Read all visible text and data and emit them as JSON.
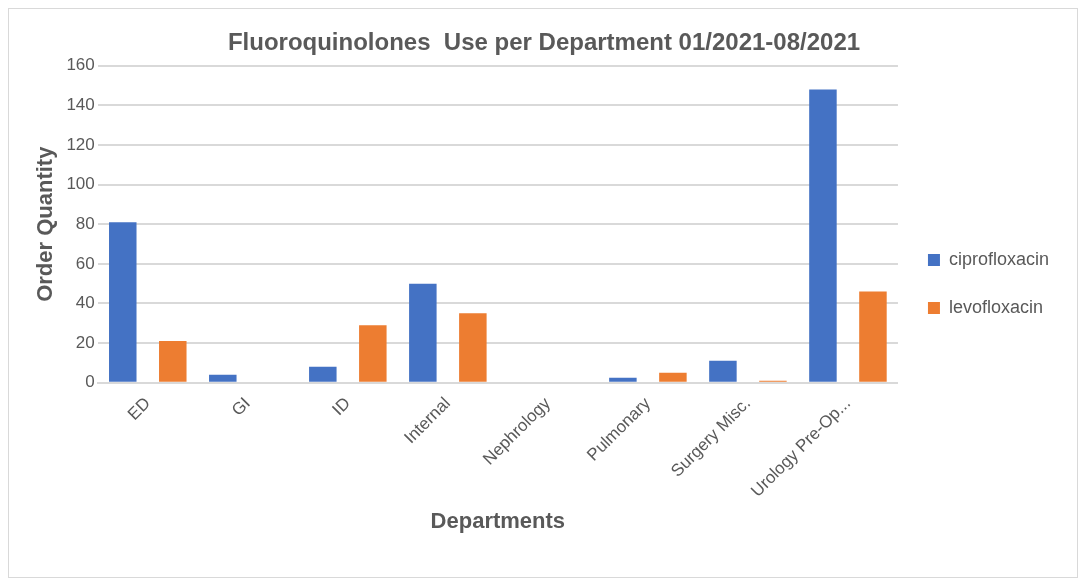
{
  "chart_data": {
    "type": "bar",
    "title": "Fluoroquinolones  Use per Department 01/2021-08/2021",
    "xlabel": "Departments",
    "ylabel": "Order Quantity",
    "categories": [
      "ED",
      "GI",
      "ID",
      "Internal",
      "Nephrology",
      "Pulmonary",
      "Surgery Misc.",
      "Urology Pre-Op..."
    ],
    "series": [
      {
        "name": "ciprofloxacin",
        "color": "#4472c4",
        "values": [
          81,
          4,
          8,
          50,
          0,
          2.5,
          11,
          148
        ]
      },
      {
        "name": "levofloxacin",
        "color": "#ed7d31",
        "values": [
          21,
          0,
          29,
          35,
          0,
          5,
          1,
          46
        ]
      }
    ],
    "ylim": [
      0,
      160
    ],
    "yticks": [
      0,
      20,
      40,
      60,
      80,
      100,
      120,
      140,
      160
    ],
    "grid": "y",
    "legend": "right"
  }
}
